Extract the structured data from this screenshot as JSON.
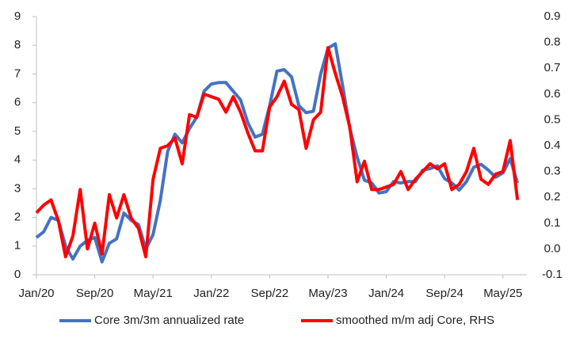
{
  "chart_data": {
    "type": "line",
    "categories": [
      "Jan/20",
      null,
      null,
      null,
      null,
      null,
      null,
      null,
      "Sep/20",
      null,
      null,
      null,
      null,
      null,
      null,
      null,
      "May/21",
      null,
      null,
      null,
      null,
      null,
      null,
      null,
      "Jan/22",
      null,
      null,
      null,
      null,
      null,
      null,
      null,
      "Sep/22",
      null,
      null,
      null,
      null,
      null,
      null,
      null,
      "May/23",
      null,
      null,
      null,
      null,
      null,
      null,
      null,
      "Jan/24",
      null,
      null,
      null,
      null,
      null,
      null,
      null,
      "Sep/24",
      null,
      null,
      null,
      null,
      null,
      null,
      null,
      "May/25",
      null,
      null
    ],
    "series": [
      {
        "name": "Core 3m/3m annualized rate",
        "color": "#4472c4",
        "values": [
          1.3,
          1.5,
          2.0,
          1.9,
          1.0,
          0.55,
          1.0,
          1.2,
          1.3,
          0.45,
          1.1,
          1.25,
          2.15,
          1.9,
          1.75,
          0.9,
          1.4,
          2.6,
          4.3,
          4.9,
          4.6,
          5.1,
          5.5,
          6.4,
          6.65,
          6.7,
          6.7,
          6.4,
          6.1,
          5.3,
          4.8,
          4.9,
          5.9,
          7.1,
          7.15,
          6.9,
          5.9,
          5.65,
          5.7,
          7.0,
          7.9,
          8.05,
          6.6,
          5.1,
          4.1,
          3.3,
          3.2,
          2.85,
          2.9,
          3.25,
          3.2,
          3.25,
          3.25,
          3.65,
          3.7,
          3.8,
          3.35,
          3.2,
          2.95,
          3.25,
          3.75,
          3.85,
          3.65,
          3.4,
          3.55,
          4.05,
          3.2
        ]
      },
      {
        "name": "smoothed m/m adj Core, RHS",
        "color": "#ff0000",
        "axis": "y2",
        "values": [
          0.14,
          0.17,
          0.19,
          0.11,
          -0.03,
          0.05,
          0.23,
          0.0,
          0.1,
          -0.02,
          0.21,
          0.12,
          0.21,
          0.12,
          0.08,
          -0.03,
          0.27,
          0.39,
          0.4,
          0.43,
          0.33,
          0.52,
          0.51,
          0.6,
          0.59,
          0.58,
          0.53,
          0.59,
          0.53,
          0.45,
          0.38,
          0.38,
          0.55,
          0.59,
          0.65,
          0.56,
          0.54,
          0.39,
          0.5,
          0.53,
          0.78,
          0.68,
          0.59,
          0.47,
          0.26,
          0.34,
          0.23,
          0.23,
          0.24,
          0.25,
          0.3,
          0.23,
          0.27,
          0.3,
          0.33,
          0.31,
          0.33,
          0.23,
          0.25,
          0.3,
          0.39,
          0.27,
          0.25,
          0.29,
          0.3,
          0.42,
          0.19
        ]
      }
    ],
    "ylim": [
      0,
      9
    ],
    "yticks": [
      0,
      1,
      2,
      3,
      4,
      5,
      6,
      7,
      8,
      9
    ],
    "y2lim": [
      -0.1,
      0.9
    ],
    "y2ticks": [
      -0.1,
      {
        "value": 0,
        "label": "0.0"
      },
      0.1,
      0.2,
      0.3,
      0.4,
      0.5,
      0.6,
      0.7,
      0.8,
      0.9
    ],
    "grid": false,
    "legend": "bottom"
  }
}
